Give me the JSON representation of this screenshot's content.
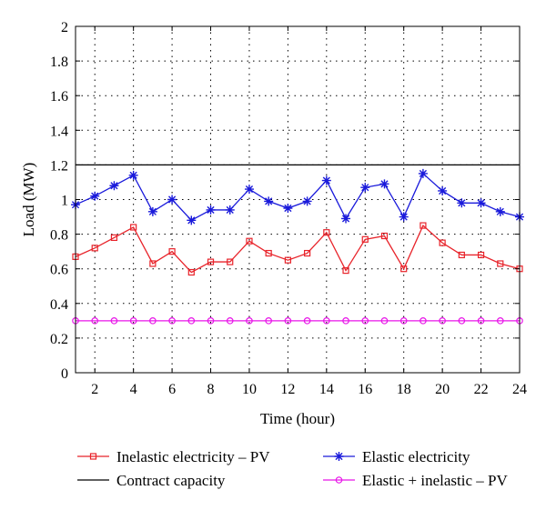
{
  "chart_data": {
    "type": "line",
    "xlabel": "Time (hour)",
    "ylabel": "Load (MW)",
    "xlim": [
      1,
      24
    ],
    "ylim": [
      0,
      2
    ],
    "x_ticks": [
      2,
      4,
      6,
      8,
      10,
      12,
      14,
      16,
      18,
      20,
      22,
      24
    ],
    "y_ticks": [
      0,
      0.2,
      0.4,
      0.6,
      0.8,
      1,
      1.2,
      1.4,
      1.6,
      1.8,
      2
    ],
    "y_tick_labels": [
      "0",
      "0.2",
      "0.4",
      "0.6",
      "0.8",
      "1",
      "1.2",
      "1.4",
      "1.6",
      "1.8",
      "2"
    ],
    "grid": "dotted",
    "legend_position": "bottom",
    "x": [
      1,
      2,
      3,
      4,
      5,
      6,
      7,
      8,
      9,
      10,
      11,
      12,
      13,
      14,
      15,
      16,
      17,
      18,
      19,
      20,
      21,
      22,
      23,
      24
    ],
    "series": [
      {
        "name": "Inelastic electricity – PV",
        "color": "#e8232a",
        "marker": "square",
        "values": [
          0.67,
          0.72,
          0.78,
          0.84,
          0.63,
          0.7,
          0.58,
          0.64,
          0.64,
          0.76,
          0.69,
          0.65,
          0.69,
          0.81,
          0.59,
          0.77,
          0.79,
          0.6,
          0.85,
          0.75,
          0.68,
          0.68,
          0.63,
          0.6
        ]
      },
      {
        "name": "Elastic electricity",
        "color": "#1a1adb",
        "marker": "asterisk",
        "values": [
          0.97,
          1.02,
          1.08,
          1.14,
          0.93,
          1.0,
          0.88,
          0.94,
          0.94,
          1.06,
          0.99,
          0.95,
          0.99,
          1.11,
          0.89,
          1.07,
          1.09,
          0.9,
          1.15,
          1.05,
          0.98,
          0.98,
          0.93,
          0.9
        ]
      },
      {
        "name": "Contract capacity",
        "color": "#000000",
        "marker": "none",
        "values": [
          1.2,
          1.2,
          1.2,
          1.2,
          1.2,
          1.2,
          1.2,
          1.2,
          1.2,
          1.2,
          1.2,
          1.2,
          1.2,
          1.2,
          1.2,
          1.2,
          1.2,
          1.2,
          1.2,
          1.2,
          1.2,
          1.2,
          1.2,
          1.2
        ]
      },
      {
        "name": "Elastic + inelastic – PV",
        "color": "#e815e8",
        "marker": "circle",
        "values": [
          0.3,
          0.3,
          0.3,
          0.3,
          0.3,
          0.3,
          0.3,
          0.3,
          0.3,
          0.3,
          0.3,
          0.3,
          0.3,
          0.3,
          0.3,
          0.3,
          0.3,
          0.3,
          0.3,
          0.3,
          0.3,
          0.3,
          0.3,
          0.3
        ]
      }
    ],
    "legend_order": [
      0,
      1,
      2,
      3
    ]
  }
}
